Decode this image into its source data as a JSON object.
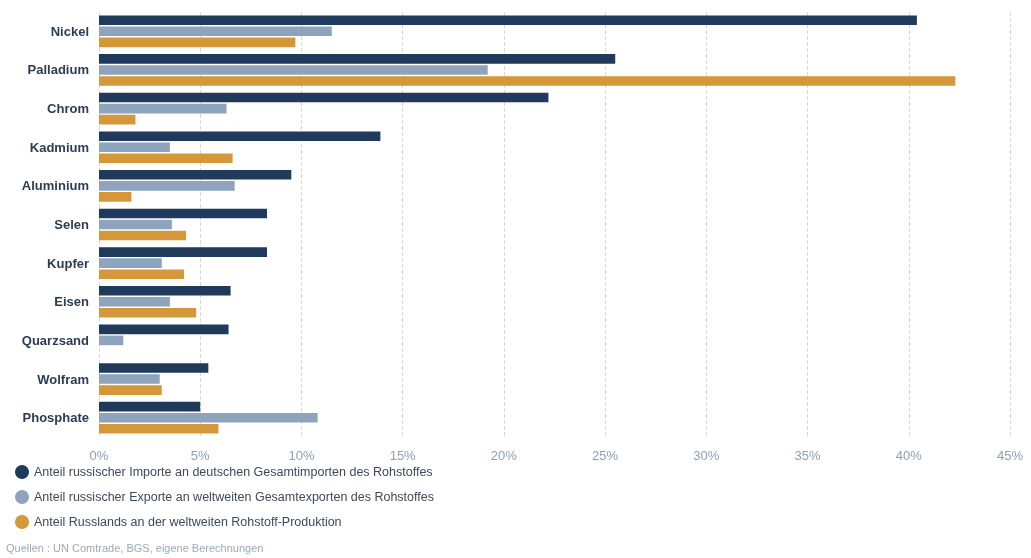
{
  "chart_data": {
    "type": "bar",
    "orientation": "horizontal",
    "categories": [
      "Nickel",
      "Palladium",
      "Chrom",
      "Kadmium",
      "Aluminium",
      "Selen",
      "Kupfer",
      "Eisen",
      "Quarzsand",
      "Wolfram",
      "Phosphate"
    ],
    "series": [
      {
        "name": "Anteil russischer Importe an deutschen Gesamtimporten des Rohstoffes",
        "color": "#1f3a5a",
        "values": [
          40.4,
          25.5,
          22.2,
          13.9,
          9.5,
          8.3,
          8.3,
          6.5,
          6.4,
          5.4,
          5.0
        ]
      },
      {
        "name": "Anteil russischer Exporte an weltweiten Gesamtexporten des Rohstoffes",
        "color": "#8ea4bd",
        "values": [
          11.5,
          19.2,
          6.3,
          3.5,
          6.7,
          3.6,
          3.1,
          3.5,
          1.2,
          3.0,
          10.8
        ]
      },
      {
        "name": "Anteil Russlands an der weltweiten Rohstoff-Produktion",
        "color": "#d4973a",
        "values": [
          9.7,
          42.3,
          1.8,
          6.6,
          1.6,
          4.3,
          4.2,
          4.8,
          null,
          3.1,
          5.9
        ]
      }
    ],
    "xlim": [
      0,
      45
    ],
    "xticks": [
      {
        "value": 0,
        "label": "0%"
      },
      {
        "value": 5,
        "label": "5%"
      },
      {
        "value": 10,
        "label": "10%"
      },
      {
        "value": 15,
        "label": "15%"
      },
      {
        "value": 20,
        "label": "20%"
      },
      {
        "value": 25,
        "label": "25%"
      },
      {
        "value": 30,
        "label": "30%"
      },
      {
        "value": 35,
        "label": "35%"
      },
      {
        "value": 40,
        "label": "40%"
      },
      {
        "value": 45,
        "label": "45%"
      }
    ],
    "grid": "x",
    "legend": "bottom left",
    "annotations": [
      "Quellen : UN Comtrade, BGS, eigene Berechnungen"
    ]
  }
}
